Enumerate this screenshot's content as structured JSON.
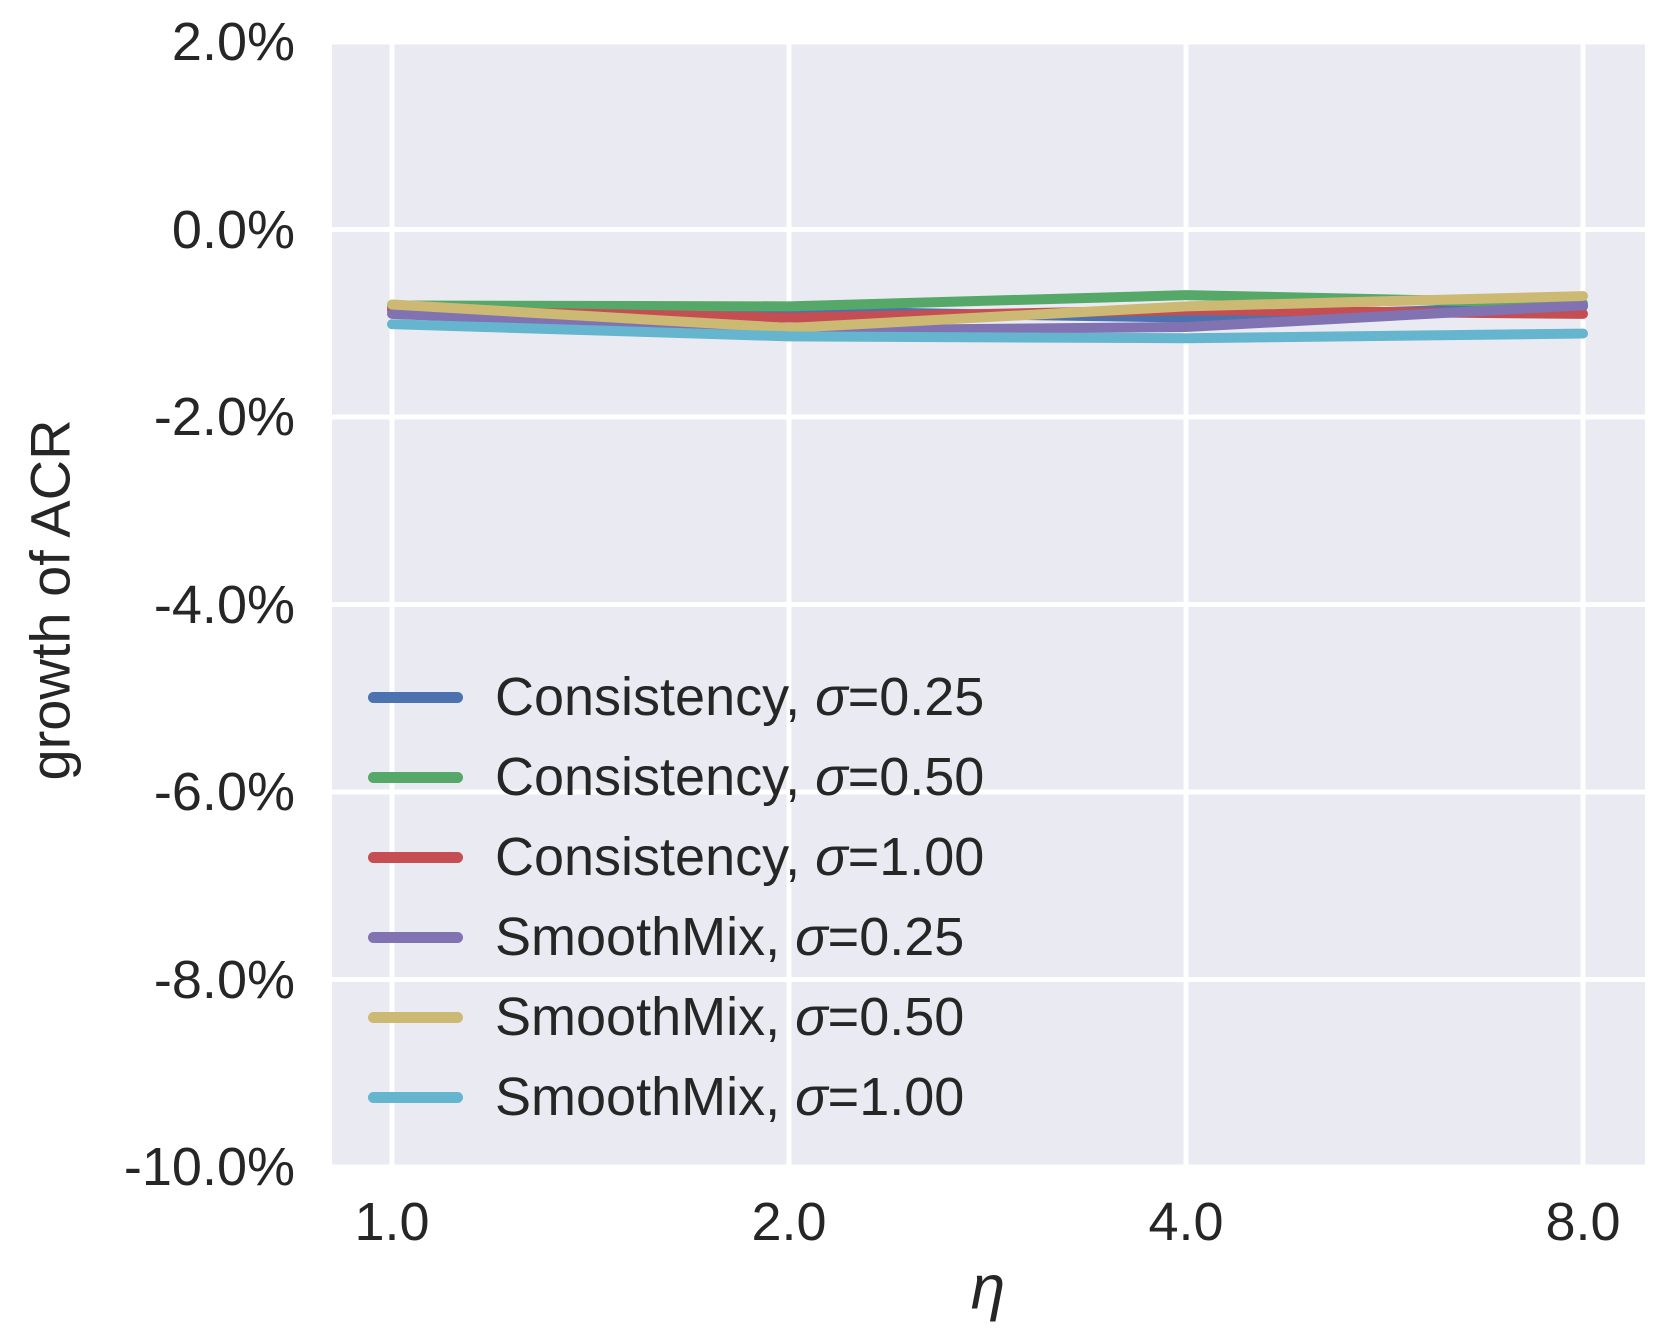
{
  "chart_data": {
    "type": "line",
    "title": "",
    "xlabel": "η",
    "ylabel": "growth of ACR",
    "x_scale": "log2",
    "x": [
      1.0,
      2.0,
      4.0,
      8.0
    ],
    "x_tick_labels": [
      "1.0",
      "2.0",
      "4.0",
      "8.0"
    ],
    "y_ticks": [
      2.0,
      0.0,
      -2.0,
      -4.0,
      -6.0,
      -8.0,
      -10.0
    ],
    "y_tick_labels": [
      "2.0%",
      "0.0%",
      "-2.0%",
      "-4.0%",
      "-6.0%",
      "-8.0%",
      "-10.0%"
    ],
    "ylim": [
      -10.0,
      2.0
    ],
    "y_unit": "percent growth of ACR",
    "grid": true,
    "legend_position": "inside lower-left, no frame",
    "plot_bg_color": "#EAEAF2",
    "grid_color": "#FFFFFF",
    "text_color": "#262626",
    "series": [
      {
        "name": "Consistency, σ=0.25",
        "color": "#4C72B0",
        "values": [
          -0.83,
          -0.87,
          -0.94,
          -0.82
        ]
      },
      {
        "name": "Consistency, σ=0.50",
        "color": "#55A868",
        "values": [
          -0.81,
          -0.82,
          -0.7,
          -0.79
        ]
      },
      {
        "name": "Consistency, σ=1.00",
        "color": "#C44E52",
        "values": [
          -0.86,
          -0.94,
          -0.86,
          -0.9
        ]
      },
      {
        "name": "SmoothMix, σ=0.25",
        "color": "#8172B2",
        "values": [
          -0.9,
          -1.08,
          -1.04,
          -0.81
        ]
      },
      {
        "name": "SmoothMix, σ=0.50",
        "color": "#CCB974",
        "values": [
          -0.8,
          -1.05,
          -0.82,
          -0.71
        ]
      },
      {
        "name": "SmoothMix, σ=1.00",
        "color": "#64B5CD",
        "values": [
          -1.01,
          -1.14,
          -1.16,
          -1.11
        ]
      }
    ]
  }
}
